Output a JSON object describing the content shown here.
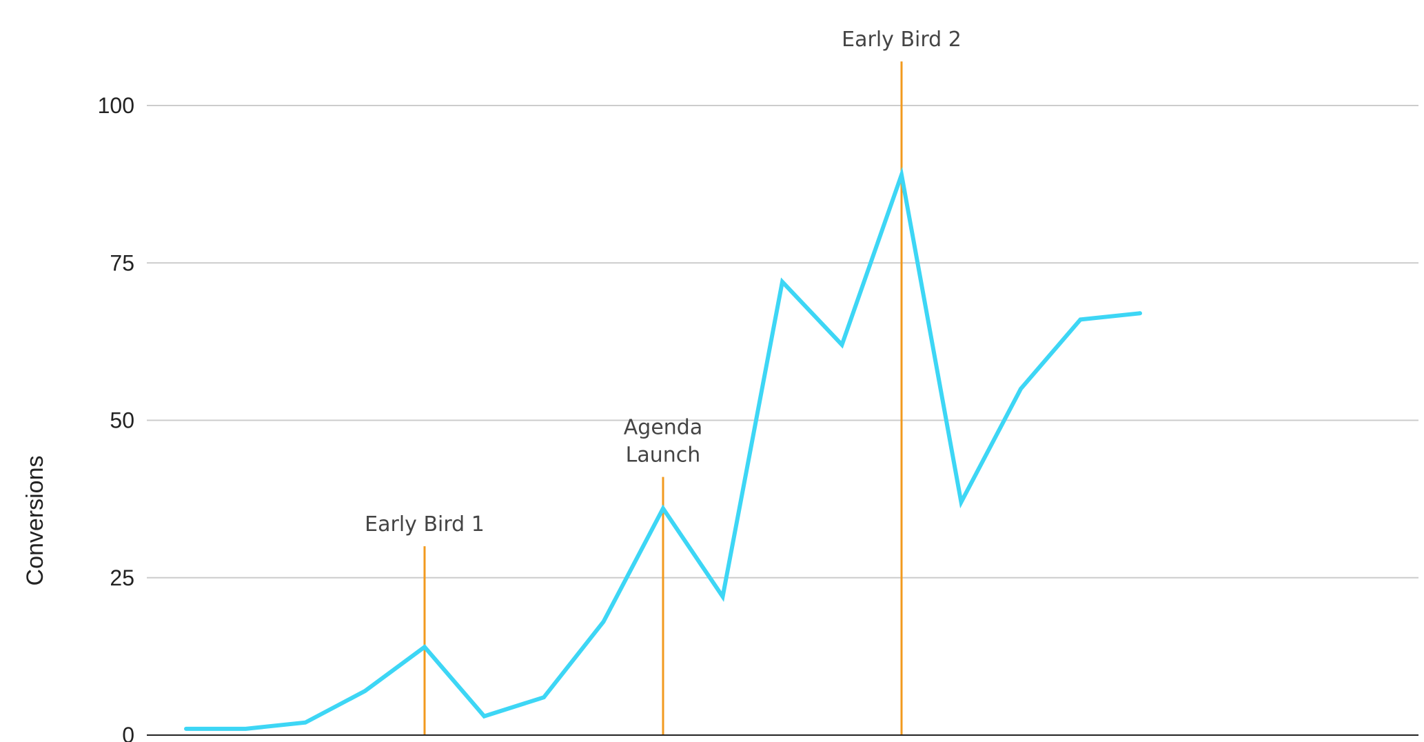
{
  "chart_data": {
    "type": "line",
    "title": "",
    "xlabel": "",
    "ylabel": "Conversions",
    "ylim": [
      0,
      100
    ],
    "yticks": [
      0,
      25,
      50,
      75,
      100
    ],
    "grid": true,
    "x": [
      1,
      2,
      3,
      4,
      5,
      6,
      7,
      8,
      9,
      10,
      11,
      12,
      13,
      14,
      15,
      16,
      17,
      18,
      19,
      20,
      21
    ],
    "series": [
      {
        "values": [
          1,
          1,
          2,
          7,
          14,
          3,
          6,
          18,
          36,
          22,
          72,
          62,
          89,
          37,
          55,
          66,
          67
        ],
        "x": [
          1,
          2,
          3,
          4,
          5,
          6,
          7,
          8,
          9,
          10,
          11,
          12,
          13,
          14,
          15,
          16,
          17
        ],
        "color": "#3DD6F5"
      }
    ],
    "annotations": [
      {
        "x": 5,
        "label": "Early Bird 1",
        "top": 30,
        "color": "#F29A1E"
      },
      {
        "x": 9,
        "label": "Agenda Launch",
        "top": 41,
        "color": "#F29A1E"
      },
      {
        "x": 13,
        "label": "Early Bird 2",
        "top": 107,
        "color": "#F29A1E"
      }
    ],
    "colors": {
      "line": "#3DD6F5",
      "annotation": "#F29A1E",
      "grid": "#CCCCCC",
      "axis": "#222222"
    }
  }
}
